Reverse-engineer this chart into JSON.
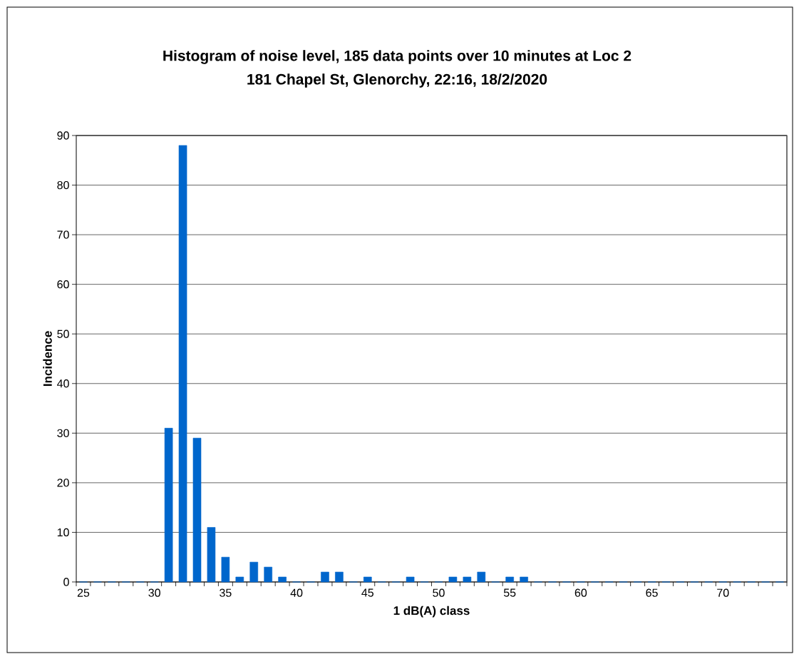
{
  "chart_data": {
    "type": "bar",
    "title": "Histogram of noise level, 185 data points over 10 minutes at Loc 2",
    "subtitle": "181 Chapel St, Glenorchy, 22:16, 18/2/2020",
    "xlabel": "1 dB(A) class",
    "ylabel": "Incidence",
    "categories": [
      "25",
      null,
      null,
      null,
      null,
      "30",
      null,
      null,
      null,
      null,
      "35",
      null,
      null,
      null,
      null,
      "40",
      null,
      null,
      null,
      null,
      "45",
      null,
      null,
      null,
      null,
      "50",
      null,
      null,
      null,
      null,
      "55",
      null,
      null,
      null,
      null,
      "60",
      null,
      null,
      null,
      null,
      "65",
      null,
      null,
      null,
      null,
      "70",
      null,
      null,
      null,
      null
    ],
    "values": [
      0,
      0,
      0,
      0,
      0,
      0,
      31,
      88,
      29,
      11,
      5,
      1,
      4,
      3,
      1,
      0,
      0,
      2,
      2,
      0,
      1,
      0,
      0,
      1,
      0,
      0,
      1,
      1,
      2,
      0,
      1,
      1,
      0,
      0,
      0,
      0,
      0,
      0,
      0,
      0,
      0,
      0,
      0,
      0,
      0,
      0,
      0,
      0,
      0,
      0
    ],
    "color": "#0066cc",
    "ylim": [
      0,
      90
    ],
    "yticks": [
      0,
      10,
      20,
      30,
      40,
      50,
      60,
      70,
      80,
      90
    ],
    "grid": "y"
  }
}
